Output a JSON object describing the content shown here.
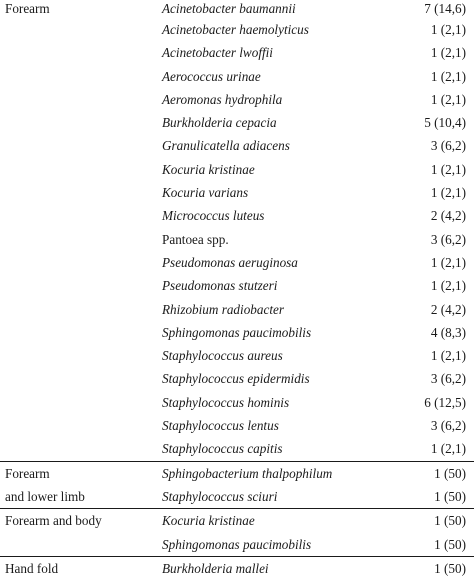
{
  "groups": [
    {
      "site_lines": [
        "Forearm"
      ],
      "rows": [
        {
          "organism": "Acinetobacter baumannii",
          "count": "7 (14,6)",
          "italic": true
        },
        {
          "organism": "Acinetobacter haemolyticus",
          "count": "1 (2,1)",
          "italic": true
        },
        {
          "organism": "Acinetobacter lwoffii",
          "count": "1 (2,1)",
          "italic": true
        },
        {
          "organism": "Aerococcus urinae",
          "count": "1 (2,1)",
          "italic": true
        },
        {
          "organism": "Aeromonas hydrophila",
          "count": "1 (2,1)",
          "italic": true
        },
        {
          "organism": "Burkholderia cepacia",
          "count": "5 (10,4)",
          "italic": true
        },
        {
          "organism": "Granulicatella adiacens",
          "count": "3 (6,2)",
          "italic": true
        },
        {
          "organism": "Kocuria kristinae",
          "count": "1 (2,1)",
          "italic": true
        },
        {
          "organism": "Kocuria varians",
          "count": "1 (2,1)",
          "italic": true
        },
        {
          "organism": "Micrococcus luteus",
          "count": "2 (4,2)",
          "italic": true
        },
        {
          "organism": "Pantoea spp.",
          "count": "3 (6,2)",
          "italic": false
        },
        {
          "organism": "Pseudomonas aeruginosa",
          "count": "1 (2,1)",
          "italic": true
        },
        {
          "organism": "Pseudomonas stutzeri",
          "count": "1 (2,1)",
          "italic": true
        },
        {
          "organism": "Rhizobium radiobacter",
          "count": "2 (4,2)",
          "italic": true
        },
        {
          "organism": "Sphingomonas paucimobilis",
          "count": "4 (8,3)",
          "italic": true
        },
        {
          "organism": "Staphylococcus aureus",
          "count": "1 (2,1)",
          "italic": true
        },
        {
          "organism": "Staphylococcus epidermidis",
          "count": "3 (6,2)",
          "italic": true
        },
        {
          "organism": "Staphylococcus hominis",
          "count": "6 (12,5)",
          "italic": true
        },
        {
          "organism": "Staphylococcus lentus",
          "count": "3 (6,2)",
          "italic": true
        },
        {
          "organism": "Staphylococcus capitis",
          "count": "1 (2,1)",
          "italic": true
        }
      ]
    },
    {
      "site_lines": [
        "Forearm",
        "and lower limb"
      ],
      "rows": [
        {
          "organism": "Sphingobacterium thalpophilum",
          "count": "1 (50)",
          "italic": true
        },
        {
          "organism": "Staphylococcus sciuri",
          "count": "1 (50)",
          "italic": true
        }
      ]
    },
    {
      "site_lines": [
        "Forearm and body"
      ],
      "rows": [
        {
          "organism": "Kocuria kristinae",
          "count": "1 (50)",
          "italic": true
        },
        {
          "organism": "Sphingomonas paucimobilis",
          "count": "1 (50)",
          "italic": true
        }
      ]
    },
    {
      "site_lines": [
        "Hand fold"
      ],
      "rows": [
        {
          "organism": "Burkholderia mallei",
          "count": "1 (50)",
          "italic": true
        }
      ]
    }
  ]
}
